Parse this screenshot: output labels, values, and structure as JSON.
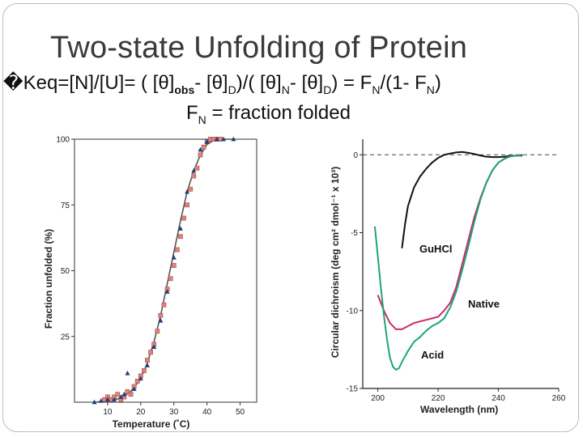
{
  "slide": {
    "title": "Two-state Unfolding of Protein",
    "equation": {
      "bullet": "�",
      "t1": "Keq=[N]/[U]= ( [θ]",
      "s1": "obs",
      "t2": "- [θ]",
      "s2": "D",
      "t3": ")/( [θ]",
      "s3": "N",
      "t4": "- [θ]",
      "s4": "D",
      "t5": ") = F",
      "s5": "N",
      "t6": "/(1- F",
      "s6": "N",
      "t7": ")"
    },
    "fn_line": {
      "t1": "F",
      "s1": "N",
      "t2": " = fraction folded"
    }
  },
  "chart_data": [
    {
      "type": "scatter",
      "title": "",
      "xlabel": "Temperature (˚C)",
      "ylabel": "Fraction unfolded (%)",
      "xlim": [
        0,
        55
      ],
      "ylim": [
        0,
        100
      ],
      "x_ticks": [
        10,
        20,
        30,
        40,
        50
      ],
      "y_ticks": [
        25,
        50,
        75,
        100
      ],
      "grid": false,
      "colors": {
        "squares": "#e0827a",
        "triangles": "#1f3f7a",
        "curve": "#555555"
      },
      "fit_curve": {
        "x": [
          6,
          10,
          14,
          17,
          20,
          22,
          24,
          26,
          28,
          30,
          32,
          34,
          36,
          38,
          40,
          42,
          45,
          48
        ],
        "y": [
          0,
          0.5,
          1.5,
          4,
          9,
          15,
          23,
          33,
          45,
          57,
          69,
          80,
          88,
          94,
          98,
          99.5,
          100,
          100
        ]
      },
      "series": [
        {
          "marker": "square",
          "points": [
            [
              9,
              1
            ],
            [
              10,
              2
            ],
            [
              11,
              1
            ],
            [
              12,
              2
            ],
            [
              13,
              3
            ],
            [
              14,
              1
            ],
            [
              15,
              2
            ],
            [
              16,
              4
            ],
            [
              17,
              3
            ],
            [
              18,
              6
            ],
            [
              19,
              8
            ],
            [
              20,
              10
            ],
            [
              21,
              12
            ],
            [
              22,
              16
            ],
            [
              23,
              19
            ],
            [
              24,
              22
            ],
            [
              25,
              27
            ],
            [
              26,
              33
            ],
            [
              27,
              37
            ],
            [
              28,
              43
            ],
            [
              29,
              47
            ],
            [
              30,
              52
            ],
            [
              31,
              58
            ],
            [
              32,
              63
            ],
            [
              33,
              70
            ],
            [
              34,
              75
            ],
            [
              35,
              81
            ],
            [
              36,
              86
            ],
            [
              37,
              89
            ],
            [
              38,
              94
            ],
            [
              39,
              97
            ],
            [
              40,
              99
            ],
            [
              41,
              100
            ],
            [
              42,
              100
            ],
            [
              43,
              100
            ],
            [
              44,
              100
            ]
          ]
        },
        {
          "marker": "triangle",
          "points": [
            [
              6,
              0
            ],
            [
              8,
              0.5
            ],
            [
              10,
              1
            ],
            [
              12,
              1
            ],
            [
              14,
              2
            ],
            [
              15,
              3
            ],
            [
              16,
              11
            ],
            [
              18,
              5
            ],
            [
              20,
              9
            ],
            [
              22,
              14
            ],
            [
              24,
              21
            ],
            [
              26,
              31
            ],
            [
              28,
              42
            ],
            [
              30,
              55
            ],
            [
              32,
              66
            ],
            [
              34,
              80
            ],
            [
              36,
              88
            ],
            [
              38,
              96
            ],
            [
              40,
              99
            ],
            [
              43,
              100
            ],
            [
              45,
              100
            ],
            [
              48,
              100
            ]
          ]
        }
      ]
    },
    {
      "type": "line",
      "title": "",
      "xlabel": "Wavelength (nm)",
      "ylabel": "Circular dichroism (deg cm² dmol⁻¹ x 10³)",
      "xlim": [
        195,
        260
      ],
      "ylim": [
        -15,
        1
      ],
      "x_ticks": [
        200,
        220,
        240,
        260
      ],
      "y_ticks": [
        0,
        -5,
        -10,
        -15
      ],
      "grid": false,
      "reference_line": {
        "y": 0,
        "style": "dashed"
      },
      "series": [
        {
          "name": "GuHCl",
          "color": "#111111",
          "x": [
            208,
            209,
            210,
            212,
            214,
            216,
            218,
            220,
            222,
            224,
            226,
            228,
            230,
            232,
            234,
            236,
            238,
            240,
            242,
            244,
            246,
            248
          ],
          "y": [
            -6.0,
            -4.5,
            -3.3,
            -2.1,
            -1.4,
            -0.9,
            -0.5,
            -0.2,
            0.0,
            0.08,
            0.15,
            0.18,
            0.12,
            0.05,
            -0.05,
            -0.12,
            -0.15,
            -0.15,
            -0.12,
            -0.08,
            -0.05,
            -0.05
          ]
        },
        {
          "name": "Native",
          "color": "#cc2a6b",
          "x": [
            200,
            202,
            204,
            206,
            208,
            210,
            212,
            214,
            216,
            218,
            220,
            222,
            224,
            226,
            228,
            230,
            232,
            234,
            236,
            238,
            240,
            242,
            244,
            246,
            248
          ],
          "y": [
            -9.0,
            -10.0,
            -10.8,
            -11.2,
            -11.2,
            -11.0,
            -10.8,
            -10.7,
            -10.6,
            -10.5,
            -10.4,
            -10.0,
            -9.5,
            -8.5,
            -7.0,
            -5.5,
            -4.0,
            -2.8,
            -1.8,
            -1.0,
            -0.5,
            -0.25,
            -0.1,
            -0.05,
            0.0
          ]
        },
        {
          "name": "Acid",
          "color": "#1fa37d",
          "x": [
            199,
            200,
            201,
            202,
            203,
            204,
            205,
            206,
            207,
            208,
            210,
            212,
            214,
            216,
            218,
            220,
            222,
            224,
            226,
            228,
            230,
            232,
            234,
            236,
            238,
            240,
            242,
            244,
            246,
            248
          ],
          "y": [
            -4.6,
            -6.5,
            -8.5,
            -10.3,
            -11.8,
            -13.0,
            -13.6,
            -13.8,
            -13.7,
            -13.3,
            -12.6,
            -12.0,
            -11.7,
            -11.3,
            -11.0,
            -10.8,
            -10.5,
            -9.8,
            -8.8,
            -7.4,
            -5.9,
            -4.3,
            -2.9,
            -1.8,
            -1.0,
            -0.5,
            -0.25,
            -0.1,
            -0.05,
            0.0
          ]
        }
      ]
    }
  ]
}
